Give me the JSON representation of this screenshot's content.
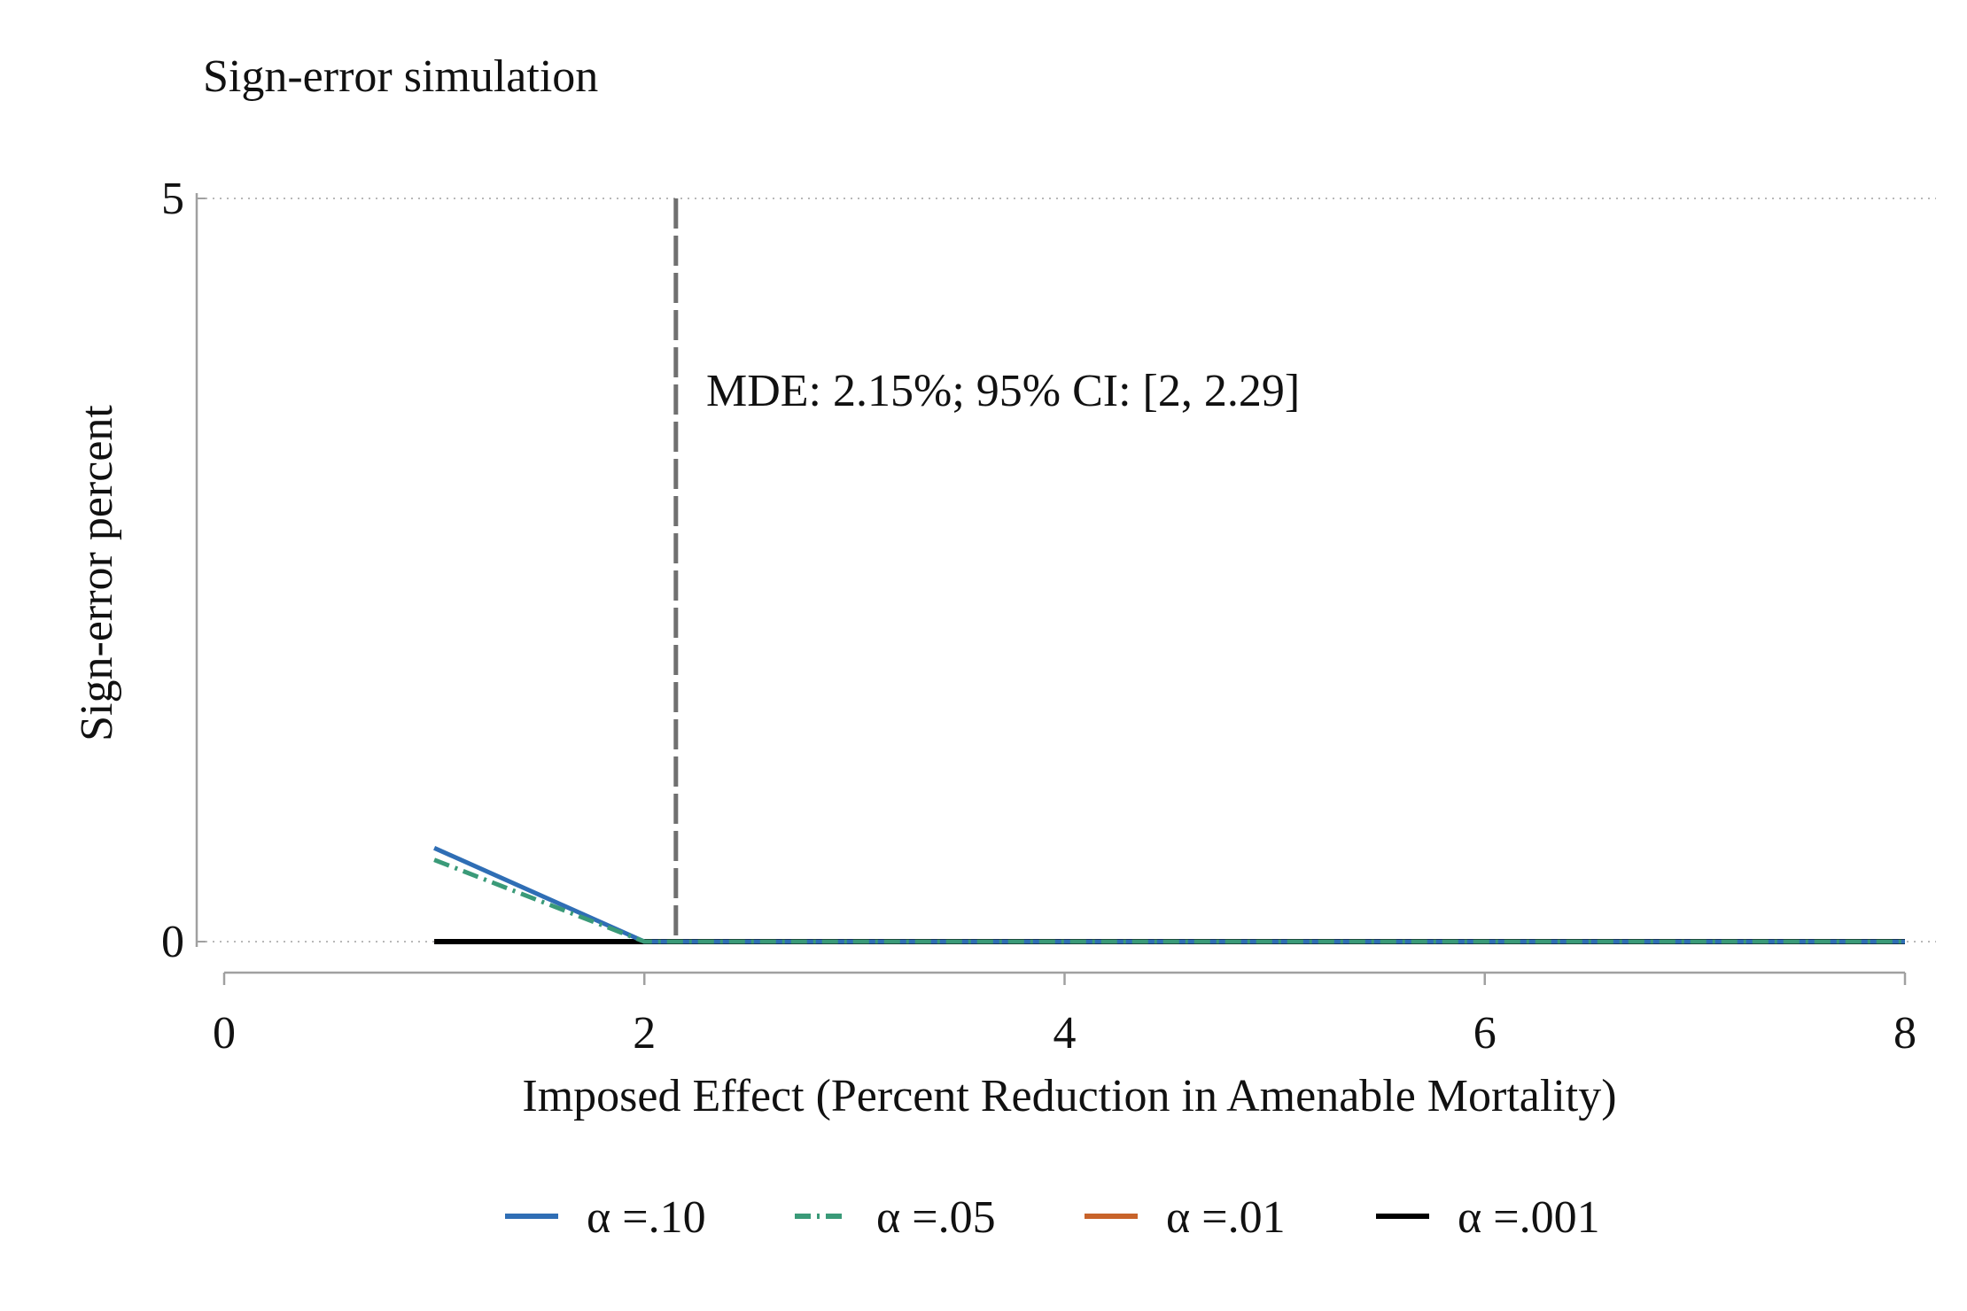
{
  "chart_data": {
    "type": "line",
    "title": "Sign-error simulation",
    "xlabel": "Imposed Effect (Percent Reduction in Amenable Mortality)",
    "ylabel": "Sign-error percent",
    "xlim": [
      0,
      8
    ],
    "ylim": [
      0,
      5
    ],
    "x_ticks": [
      0,
      2,
      4,
      6,
      8
    ],
    "y_ticks": [
      0,
      5
    ],
    "grid": "horizontal dotted at y ticks",
    "legend_position": "bottom",
    "series": [
      {
        "name": "α =.10",
        "color": "#2f6eb5",
        "style": "solid",
        "x": [
          1,
          2,
          3,
          4,
          5,
          6,
          7,
          8
        ],
        "values": [
          0.63,
          0,
          0,
          0,
          0,
          0,
          0,
          0
        ]
      },
      {
        "name": "α =.05",
        "color": "#3a9a78",
        "style": "dashdot",
        "x": [
          1,
          2,
          3,
          4,
          5,
          6,
          7,
          8
        ],
        "values": [
          0.55,
          0,
          0,
          0,
          0,
          0,
          0,
          0
        ]
      },
      {
        "name": "α =.01",
        "color": "#c8632a",
        "style": "solid",
        "x": [
          1,
          2,
          3,
          4,
          5,
          6,
          7,
          8
        ],
        "values": [
          0,
          0,
          0,
          0,
          0,
          0,
          0,
          0
        ]
      },
      {
        "name": "α =.001",
        "color": "#000000",
        "style": "solid",
        "x": [
          1,
          2,
          3,
          4,
          5,
          6,
          7,
          8
        ],
        "values": [
          0,
          0,
          0,
          0,
          0,
          0,
          0,
          0
        ]
      }
    ],
    "reference_line": {
      "x": 2.15,
      "color": "#707070",
      "style": "dashed"
    },
    "annotation": "MDE: 2.15%; 95% CI: [2, 2.29]"
  }
}
